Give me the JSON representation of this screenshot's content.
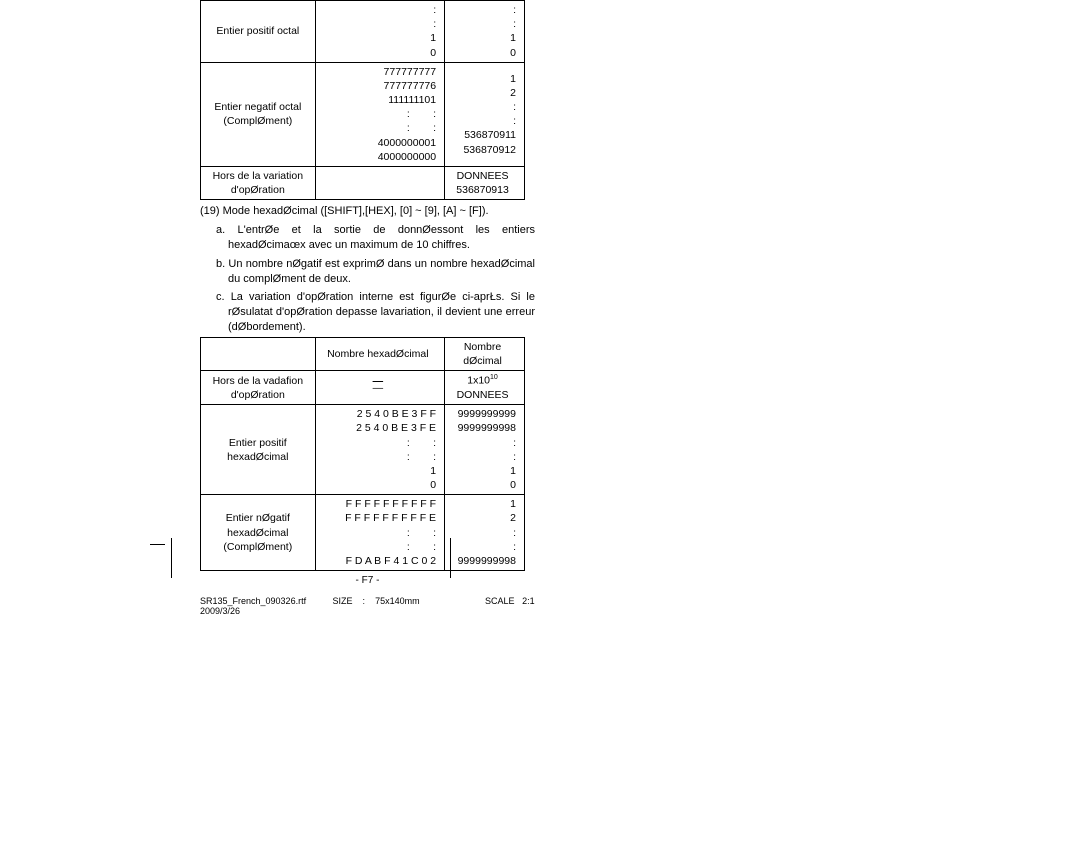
{
  "table1": {
    "rows": [
      {
        "label": "Entier positif octal",
        "mid": [
          ":",
          ":",
          "1",
          "0"
        ],
        "right": [
          ":",
          ":",
          "1",
          "0"
        ]
      },
      {
        "label": "Entier negatif octal\n(ComplØment)",
        "mid": [
          "777777777",
          "777777776",
          "111111101",
          ":        :",
          ":        :",
          "4000000001",
          "4000000000"
        ],
        "right": [
          "1",
          "2",
          "",
          ":",
          ":",
          "536870911",
          "536870912"
        ]
      },
      {
        "label": "Hors de la variation\nd'opØration",
        "mid": "",
        "right": "DONNEES\n536870913"
      }
    ]
  },
  "section19": {
    "heading": "(19) Mode hexadØcimal ([SHIFT],[HEX], [0] ~ [9], [A] ~ [F]).",
    "items": [
      "a. L'entrØe et la sortie de donnØessont les entiers hexadØcimaœx avec un maximum de 10 chiffres.",
      "b. Un nombre nØgatif est exprimØ dans un nombre hexadØcimal du complØment de deux.",
      "c. La variation d'opØration interne est figurØe ci-aprŁs. Si le rØsulatat d'opØration depasse lavariation, il devient une erreur (dØbordement)."
    ]
  },
  "table2": {
    "header": {
      "mid": "Nombre hexadØcimal",
      "right": "Nombre dØcimal"
    },
    "rows": [
      {
        "label": "Hors de la vadafion\nd'opØration",
        "mid": "—",
        "right_top": "1x10",
        "right_exp": "10",
        "right_bot": "DONNEES"
      },
      {
        "label": "Entier positif\nhexadØcimal",
        "mid": [
          "2 5 4 0 B E 3 F F",
          "2 5 4 0 B E 3 F E",
          ":        :",
          ":        :",
          "1",
          "0"
        ],
        "right": [
          "9999999999",
          "9999999998",
          ":",
          ":",
          "1",
          "0"
        ]
      },
      {
        "label": "Entier nØgatif\nhexadØcimal\n(ComplØment)",
        "mid": [
          "F F F F F F F F F F",
          "F F F F F F F F F E",
          ":        :",
          ":        :",
          "F D A B F 4 1 C 0 2"
        ],
        "right": [
          "1",
          "2",
          ":",
          ":",
          "9999999998"
        ]
      }
    ]
  },
  "page_number": "- F7 -",
  "footer": {
    "file": "SR135_French_090326.rtf",
    "size_label": "SIZE",
    "size_sep": ":",
    "size_val": "75x140mm",
    "scale_label": "SCALE",
    "scale_val": "2:1",
    "date": "2009/3/26"
  }
}
